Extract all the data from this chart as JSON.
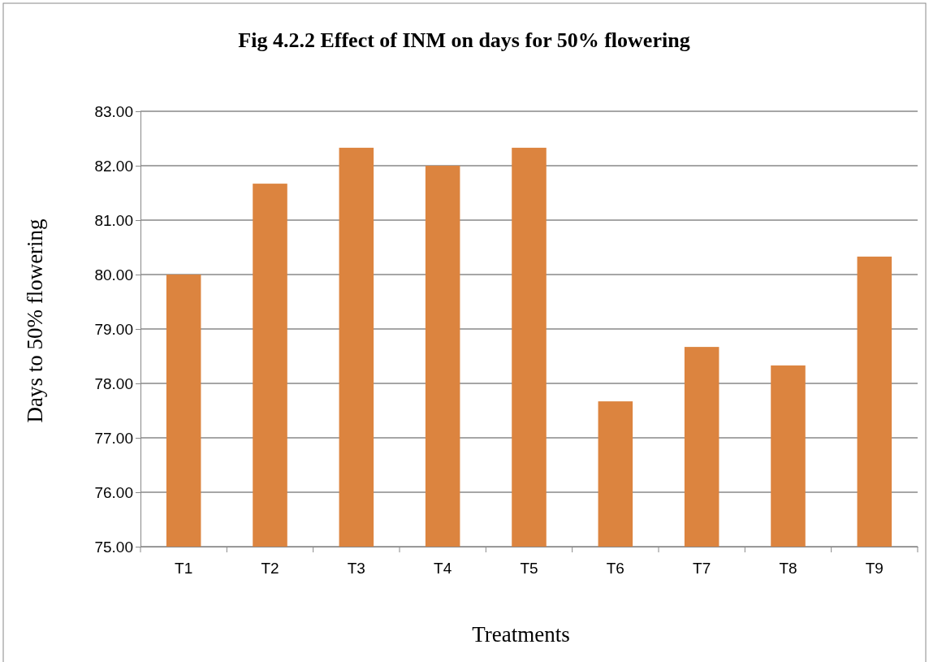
{
  "chart_data": {
    "type": "bar",
    "title": "Fig 4.2.2 Effect of INM on days for 50% flowering",
    "xlabel": "Treatments",
    "ylabel": "Days to 50%  flowering",
    "categories": [
      "T1",
      "T2",
      "T3",
      "T4",
      "T5",
      "T6",
      "T7",
      "T8",
      "T9"
    ],
    "values": [
      80.0,
      81.67,
      82.33,
      82.0,
      82.33,
      77.67,
      78.67,
      78.33,
      80.33
    ],
    "color": "#dc843f",
    "ylim": [
      75,
      83
    ],
    "yticks": [
      {
        "value": 75,
        "label": "75.00"
      },
      {
        "value": 76,
        "label": "76.00"
      },
      {
        "value": 77,
        "label": "77.00"
      },
      {
        "value": 78,
        "label": "78.00"
      },
      {
        "value": 79,
        "label": "79.00"
      },
      {
        "value": 80,
        "label": "80.00"
      },
      {
        "value": 81,
        "label": "81.00"
      },
      {
        "value": 82,
        "label": "82.00"
      },
      {
        "value": 83,
        "label": "83.00"
      }
    ],
    "grid": "y"
  }
}
